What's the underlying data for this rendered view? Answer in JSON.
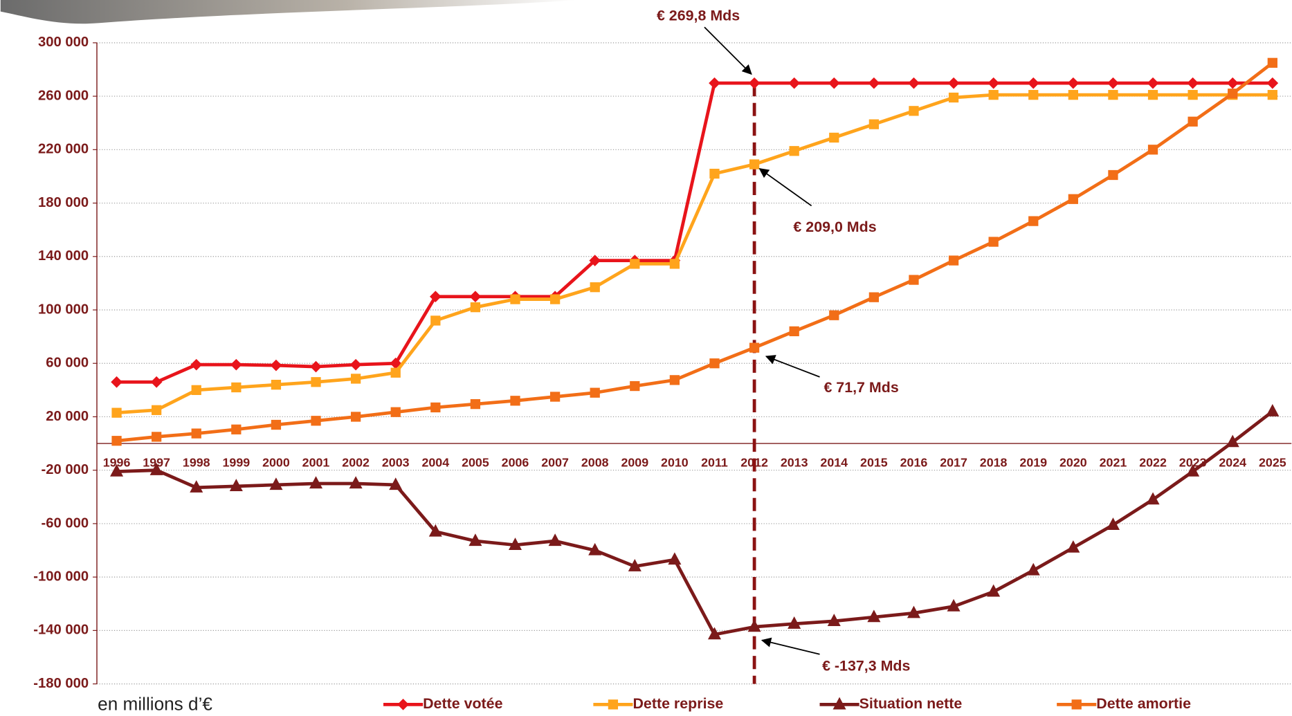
{
  "chart_data": {
    "type": "line",
    "categories": [
      "1996",
      "1997",
      "1998",
      "1999",
      "2000",
      "2001",
      "2002",
      "2003",
      "2004",
      "2005",
      "2006",
      "2007",
      "2008",
      "2009",
      "2010",
      "2011",
      "2012",
      "2013",
      "2014",
      "2015",
      "2016",
      "2017",
      "2018",
      "2019",
      "2020",
      "2021",
      "2022",
      "2023",
      "2024",
      "2025"
    ],
    "series": [
      {
        "name": "Dette votée",
        "color": "#e8141b",
        "marker": "diamond",
        "values": [
          46000,
          46000,
          59000,
          59000,
          58500,
          57500,
          59000,
          60000,
          110000,
          110000,
          110000,
          110000,
          137000,
          137000,
          137000,
          269800,
          269800,
          269800,
          269800,
          269800,
          269800,
          269800,
          269800,
          269800,
          269800,
          269800,
          269800,
          269800,
          269800,
          269800
        ]
      },
      {
        "name": "Dette reprise",
        "color": "#ffa41c",
        "marker": "square",
        "values": [
          23000,
          25000,
          40000,
          42000,
          44000,
          46000,
          48500,
          53000,
          92000,
          102000,
          108000,
          108000,
          117000,
          134500,
          134500,
          202000,
          209000,
          219000,
          229000,
          239000,
          249000,
          259000,
          261000,
          261000,
          261000,
          261000,
          261000,
          261000,
          261000,
          261000
        ]
      },
      {
        "name": "Situation nette",
        "color": "#7b1a1a",
        "marker": "triangle",
        "values": [
          -21000,
          -20000,
          -33000,
          -32000,
          -31000,
          -30000,
          -30000,
          -31000,
          -66000,
          -73000,
          -76000,
          -73000,
          -80000,
          -92000,
          -87000,
          -143000,
          -137300,
          -135000,
          -133000,
          -130000,
          -127000,
          -122000,
          -111000,
          -95000,
          -78000,
          -61000,
          -42000,
          -21000,
          1000,
          24000
        ]
      },
      {
        "name": "Dette amortie",
        "color": "#f26e17",
        "marker": "square",
        "values": [
          2000,
          5000,
          7500,
          10500,
          14000,
          17000,
          20000,
          23500,
          27000,
          29500,
          32000,
          35000,
          38000,
          43000,
          47500,
          60000,
          71700,
          84000,
          96000,
          109500,
          122500,
          137000,
          151000,
          166500,
          183000,
          201000,
          220000,
          241000,
          262000,
          285000
        ]
      }
    ],
    "ylim": [
      -180000,
      300000
    ],
    "yticks": [
      {
        "value": 300000,
        "label": "300 000"
      },
      {
        "value": 260000,
        "label": "260 000"
      },
      {
        "value": 220000,
        "label": "220 000"
      },
      {
        "value": 180000,
        "label": "180 000"
      },
      {
        "value": 140000,
        "label": "140 000"
      },
      {
        "value": 100000,
        "label": "100 000"
      },
      {
        "value": 60000,
        "label": "60 000"
      },
      {
        "value": 20000,
        "label": "20 000"
      },
      {
        "value": -20000,
        "label": "-20 000"
      },
      {
        "value": -60000,
        "label": "-60 000"
      },
      {
        "value": -100000,
        "label": "-100 000"
      },
      {
        "value": -140000,
        "label": "-140 000"
      },
      {
        "value": -180000,
        "label": "-180 000"
      }
    ],
    "grid": true,
    "legend": "bottom",
    "y_axis_label": "en millions d’€",
    "annotations": [
      "€ 269,8 Mds",
      "€ 209,0 Mds",
      "€ 71,7 Mds",
      "€ -137,3 Mds"
    ]
  }
}
